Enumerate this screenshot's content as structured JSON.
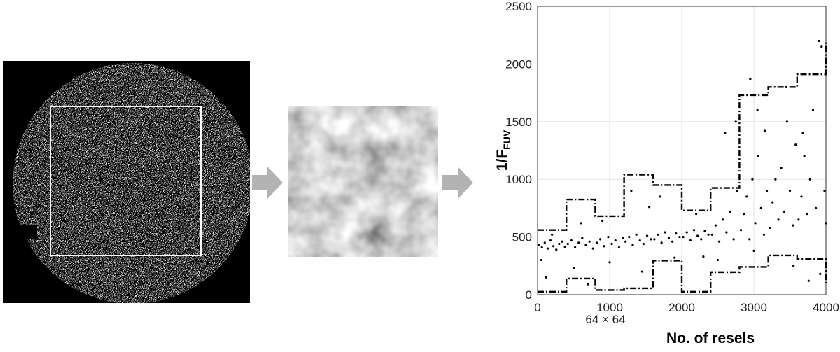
{
  "chart_data": {
    "type": "scatter",
    "ylabel": "1/F",
    "ylabel_sub": "FUV",
    "xlabel": "No. of resels",
    "annotation": "64 × 64",
    "xlim": [
      0,
      4000
    ],
    "ylim": [
      0,
      2500
    ],
    "xticks": [
      0,
      1000,
      2000,
      3000,
      4000
    ],
    "yticks": [
      0,
      500,
      1000,
      1500,
      2000,
      2500
    ],
    "grid": true,
    "series": [
      {
        "kind": "points",
        "color": "#000000",
        "x": [
          20,
          60,
          100,
          140,
          180,
          220,
          260,
          300,
          340,
          380,
          50,
          200,
          120,
          420,
          470,
          520,
          570,
          620,
          670,
          720,
          770,
          500,
          600,
          700,
          820,
          870,
          920,
          980,
          1030,
          1080,
          1130,
          1180,
          900,
          1000,
          1220,
          1270,
          1320,
          1370,
          1420,
          1470,
          1520,
          1570,
          1300,
          1450,
          1550,
          1620,
          1670,
          1720,
          1770,
          1820,
          1870,
          1920,
          1970,
          1700,
          1900,
          2020,
          2070,
          2120,
          2170,
          2220,
          2270,
          2320,
          2370,
          2200,
          2300,
          2420,
          2470,
          2520,
          2570,
          2620,
          2670,
          2720,
          2770,
          2600,
          2750,
          2500,
          2820,
          2860,
          2900,
          2940,
          2980,
          3020,
          3060,
          3100,
          3140,
          3180,
          2950,
          3050,
          3150,
          3000,
          3220,
          3260,
          3300,
          3340,
          3380,
          3420,
          3460,
          3500,
          3540,
          3580,
          3450,
          3550,
          3620,
          3660,
          3700,
          3740,
          3780,
          3820,
          3860,
          3900,
          3940,
          3980,
          3760,
          3920,
          4000,
          3680
        ],
        "values": [
          430,
          410,
          450,
          400,
          470,
          420,
          390,
          440,
          460,
          415,
          300,
          520,
          150,
          440,
          470,
          410,
          450,
          490,
          430,
          460,
          400,
          230,
          620,
          90,
          450,
          480,
          420,
          500,
          440,
          470,
          410,
          490,
          640,
          280,
          460,
          500,
          430,
          520,
          470,
          440,
          510,
          480,
          900,
          200,
          760,
          480,
          520,
          450,
          540,
          490,
          460,
          530,
          500,
          850,
          320,
          500,
          540,
          470,
          560,
          510,
          480,
          550,
          520,
          700,
          330,
          520,
          600,
          460,
          650,
          540,
          720,
          480,
          900,
          1400,
          1500,
          300,
          560,
          700,
          850,
          480,
          1000,
          620,
          1200,
          750,
          520,
          900,
          1870,
          1600,
          1420,
          380,
          580,
          800,
          1000,
          650,
          1100,
          720,
          1500,
          900,
          600,
          1300,
          1800,
          250,
          650,
          850,
          1200,
          700,
          1000,
          1600,
          750,
          2200,
          2150,
          900,
          120,
          180,
          620,
          1400
        ]
      },
      {
        "kind": "step",
        "color": "#000000",
        "x": [
          0,
          400,
          400,
          800,
          800,
          1200,
          1200,
          1600,
          1600,
          2000,
          2000,
          2400,
          2400,
          2800,
          2800,
          3200,
          3200,
          3600,
          3600,
          4000,
          4000
        ],
        "values": [
          560,
          560,
          825,
          825,
          680,
          680,
          1040,
          1040,
          950,
          950,
          730,
          730,
          925,
          925,
          1730,
          1730,
          1800,
          1800,
          1910,
          1910,
          2200
        ]
      },
      {
        "kind": "step",
        "color": "#000000",
        "x": [
          0,
          400,
          400,
          800,
          800,
          1200,
          1200,
          1600,
          1600,
          2000,
          2000,
          2400,
          2400,
          2800,
          2800,
          3200,
          3200,
          3600,
          3600,
          4000,
          4000
        ],
        "values": [
          25,
          25,
          140,
          140,
          40,
          40,
          55,
          55,
          295,
          295,
          25,
          25,
          195,
          195,
          240,
          240,
          340,
          340,
          310,
          310,
          100
        ]
      }
    ]
  }
}
